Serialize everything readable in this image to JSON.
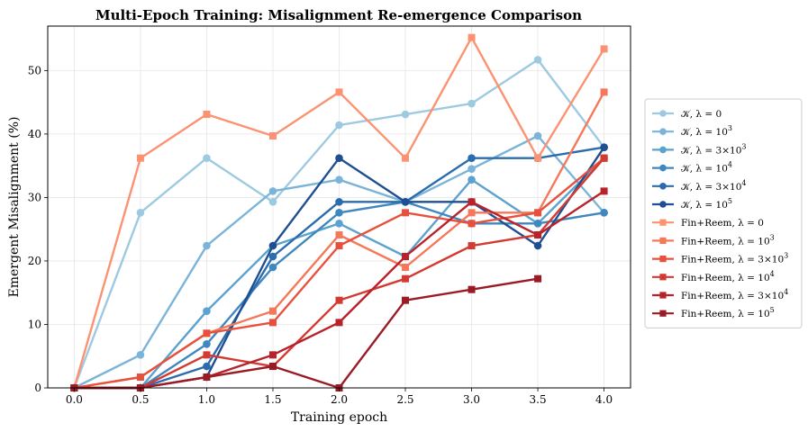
{
  "chart_data": {
    "type": "line",
    "title": "Multi-Epoch Training: Misalignment Re-emergence Comparison",
    "xlabel": "Training epoch",
    "ylabel": "Emergent Misalignment (%)",
    "xlim": [
      -0.2,
      4.2
    ],
    "ylim": [
      0,
      57
    ],
    "xticks": [
      0.0,
      0.5,
      1.0,
      1.5,
      2.0,
      2.5,
      3.0,
      3.5,
      4.0
    ],
    "xtick_labels": [
      "0.0",
      "0.5",
      "1.0",
      "1.5",
      "2.0",
      "2.5",
      "3.0",
      "3.5",
      "4.0"
    ],
    "yticks": [
      0,
      10,
      20,
      30,
      40,
      50
    ],
    "ytick_labels": [
      "0",
      "10",
      "20",
      "30",
      "40",
      "50"
    ],
    "grid": true,
    "legend_position": "right-outside",
    "series": [
      {
        "key": "k0",
        "label_prefix": "𝒦, λ = ",
        "base": "0",
        "exp": "",
        "color": "#9ecae1",
        "marker": "circle",
        "x": [
          0,
          0.5,
          1.0,
          1.5,
          2.0,
          2.5,
          3.0,
          3.5,
          4.0
        ],
        "values": [
          0,
          27.6,
          36.2,
          29.3,
          41.4,
          43.1,
          44.8,
          51.7,
          37.9
        ]
      },
      {
        "key": "k1",
        "label_prefix": "𝒦, λ = ",
        "base": "10",
        "exp": "3",
        "color": "#7ab4d8",
        "marker": "circle",
        "x": [
          0,
          0.5,
          1.0,
          1.5,
          2.0,
          2.5,
          3.0,
          3.5,
          4.0
        ],
        "values": [
          0,
          5.2,
          22.4,
          31.0,
          32.8,
          29.3,
          34.5,
          39.7,
          27.6
        ]
      },
      {
        "key": "k2",
        "label_prefix": "𝒦, λ = ",
        "base": "3×10",
        "exp": "3",
        "color": "#5ba2cf",
        "marker": "circle",
        "x": [
          0,
          0.5,
          1.0,
          1.5,
          2.0,
          2.5,
          3.0,
          3.5,
          4.0
        ],
        "values": [
          0,
          0,
          12.1,
          22.4,
          25.9,
          20.7,
          32.8,
          25.9,
          36.2
        ]
      },
      {
        "key": "k3",
        "label_prefix": "𝒦, λ = ",
        "base": "10",
        "exp": "4",
        "color": "#3f87bf",
        "marker": "circle",
        "x": [
          0,
          0.5,
          1.0,
          1.5,
          2.0,
          2.5,
          3.0,
          3.5,
          4.0
        ],
        "values": [
          0,
          0,
          6.9,
          19.0,
          27.6,
          29.3,
          25.9,
          25.9,
          27.6
        ]
      },
      {
        "key": "k4",
        "label_prefix": "𝒦, λ = ",
        "base": "3×10",
        "exp": "4",
        "color": "#2a6cad",
        "marker": "circle",
        "x": [
          0,
          0.5,
          1.0,
          1.5,
          2.0,
          2.5,
          3.0,
          3.5,
          4.0
        ],
        "values": [
          0,
          0,
          3.4,
          20.7,
          29.3,
          29.3,
          36.2,
          36.2,
          37.9
        ]
      },
      {
        "key": "k5",
        "label_prefix": "𝒦, λ = ",
        "base": "10",
        "exp": "5",
        "color": "#1d4f92",
        "marker": "circle",
        "x": [
          0,
          0.5,
          1.0,
          1.5,
          2.0,
          2.5,
          3.0,
          3.5,
          4.0
        ],
        "values": [
          0,
          0,
          1.7,
          22.4,
          36.2,
          29.3,
          29.3,
          22.4,
          37.9
        ]
      },
      {
        "key": "f0",
        "label_prefix": "Fin+Reem, λ = ",
        "base": "0",
        "exp": "",
        "color": "#fc9272",
        "marker": "square",
        "x": [
          0,
          0.5,
          1.0,
          1.5,
          2.0,
          2.5,
          3.0,
          3.5,
          4.0
        ],
        "values": [
          0,
          36.2,
          43.1,
          39.7,
          46.6,
          36.2,
          55.2,
          36.2,
          53.4
        ]
      },
      {
        "key": "f1",
        "label_prefix": "Fin+Reem, λ = ",
        "base": "10",
        "exp": "3",
        "color": "#f5785a",
        "marker": "square",
        "x": [
          0,
          0.5,
          1.0,
          1.5,
          2.0,
          2.5,
          3.0,
          3.5,
          4.0
        ],
        "values": [
          0,
          1.7,
          8.6,
          12.1,
          24.1,
          19.0,
          27.6,
          27.6,
          46.6
        ]
      },
      {
        "key": "f2",
        "label_prefix": "Fin+Reem, λ = ",
        "base": "3×10",
        "exp": "3",
        "color": "#e8503e",
        "marker": "square",
        "x": [
          0,
          0.5,
          1.0,
          1.5,
          2.0,
          2.5,
          3.0,
          3.5,
          4.0
        ],
        "values": [
          0,
          1.7,
          8.6,
          10.3,
          22.4,
          27.6,
          25.9,
          27.6,
          36.2
        ]
      },
      {
        "key": "f3",
        "label_prefix": "Fin+Reem, λ = ",
        "base": "10",
        "exp": "4",
        "color": "#d33a32",
        "marker": "square",
        "x": [
          0,
          0.5,
          1.0,
          1.5,
          2.0,
          2.5,
          3.0,
          3.5,
          4.0
        ],
        "values": [
          0,
          0,
          5.2,
          3.4,
          13.8,
          17.2,
          22.4,
          24.1,
          36.2
        ]
      },
      {
        "key": "f4",
        "label_prefix": "Fin+Reem, λ = ",
        "base": "3×10",
        "exp": "4",
        "color": "#b8232b",
        "marker": "square",
        "x": [
          0,
          0.5,
          1.0,
          1.5,
          2.0,
          2.5,
          3.0,
          3.5,
          4.0
        ],
        "values": [
          0,
          0,
          1.7,
          5.2,
          10.3,
          20.7,
          29.3,
          24.1,
          31.0
        ]
      },
      {
        "key": "f5",
        "label_prefix": "Fin+Reem, λ = ",
        "base": "10",
        "exp": "5",
        "color": "#9b1b25",
        "marker": "square",
        "x": [
          0,
          0.5,
          1.0,
          1.5,
          2.0,
          2.5,
          3.0,
          3.5,
          4.0
        ],
        "values": [
          0,
          0,
          1.7,
          3.4,
          0,
          13.8,
          15.5,
          17.2,
          null
        ]
      }
    ]
  }
}
